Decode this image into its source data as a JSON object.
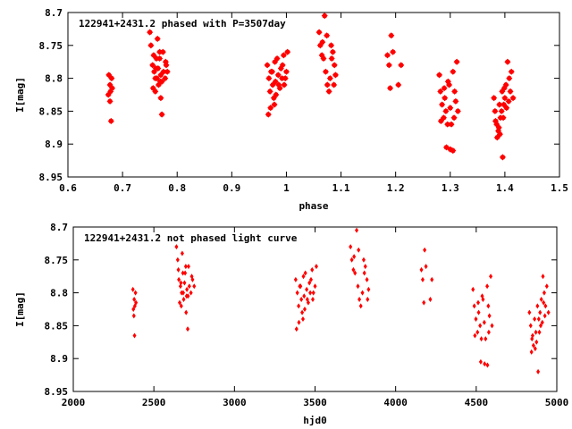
{
  "chart_data": [
    {
      "type": "scatter",
      "title": "122941+2431.2 phased with P=3507day",
      "xlabel": "phase",
      "ylabel": "I[mag]",
      "xlim": [
        0.6,
        1.5
      ],
      "ylim": [
        8.7,
        8.95
      ],
      "y_inverted": true,
      "x_ticks": [
        "0.6",
        "0.7",
        "0.8",
        "0.9",
        "1",
        "1.1",
        "1.2",
        "1.3",
        "1.4",
        "1.5"
      ],
      "y_ticks": [
        "8.7",
        "8.75",
        "8.8",
        "8.85",
        "8.9",
        "8.95"
      ],
      "grid": false,
      "color": "#ff0000",
      "series": [
        {
          "points": [
            [
              0.675,
              8.795
            ],
            [
              0.677,
              8.81
            ],
            [
              0.678,
              8.82
            ],
            [
              0.68,
              8.8
            ],
            [
              0.677,
              8.835
            ],
            [
              0.679,
              8.865
            ],
            [
              0.681,
              8.815
            ],
            [
              0.674,
              8.825
            ],
            [
              0.75,
              8.73
            ],
            [
              0.752,
              8.75
            ],
            [
              0.755,
              8.78
            ],
            [
              0.758,
              8.79
            ],
            [
              0.76,
              8.8
            ],
            [
              0.762,
              8.77
            ],
            [
              0.765,
              8.785
            ],
            [
              0.768,
              8.76
            ],
            [
              0.77,
              8.795
            ],
            [
              0.772,
              8.805
            ],
            [
              0.775,
              8.79
            ],
            [
              0.778,
              8.8
            ],
            [
              0.78,
              8.78
            ],
            [
              0.756,
              8.815
            ],
            [
              0.76,
              8.82
            ],
            [
              0.766,
              8.81
            ],
            [
              0.77,
              8.83
            ],
            [
              0.772,
              8.855
            ],
            [
              0.764,
              8.74
            ],
            [
              0.768,
              8.77
            ],
            [
              0.774,
              8.76
            ],
            [
              0.779,
              8.775
            ],
            [
              0.782,
              8.79
            ],
            [
              0.761,
              8.785
            ],
            [
              0.757,
              8.765
            ],
            [
              0.763,
              8.8
            ],
            [
              0.769,
              8.805
            ],
            [
              0.965,
              8.78
            ],
            [
              0.968,
              8.8
            ],
            [
              0.97,
              8.82
            ],
            [
              0.972,
              8.79
            ],
            [
              0.975,
              8.81
            ],
            [
              0.978,
              8.84
            ],
            [
              0.98,
              8.805
            ],
            [
              0.983,
              8.77
            ],
            [
              0.985,
              8.795
            ],
            [
              0.988,
              8.815
            ],
            [
              0.99,
              8.785
            ],
            [
              0.993,
              8.78
            ],
            [
              0.995,
              8.765
            ],
            [
              0.998,
              8.8
            ],
            [
              1.0,
              8.79
            ],
            [
              1.002,
              8.76
            ],
            [
              0.967,
              8.855
            ],
            [
              0.971,
              8.845
            ],
            [
              0.977,
              8.83
            ],
            [
              0.981,
              8.825
            ],
            [
              0.986,
              8.81
            ],
            [
              0.992,
              8.8
            ],
            [
              0.974,
              8.79
            ],
            [
              0.979,
              8.775
            ],
            [
              0.996,
              8.81
            ],
            [
              1.06,
              8.73
            ],
            [
              1.062,
              8.75
            ],
            [
              1.065,
              8.765
            ],
            [
              1.068,
              8.77
            ],
            [
              1.07,
              8.705
            ],
            [
              1.072,
              8.79
            ],
            [
              1.075,
              8.81
            ],
            [
              1.078,
              8.82
            ],
            [
              1.08,
              8.8
            ],
            [
              1.082,
              8.75
            ],
            [
              1.085,
              8.76
            ],
            [
              1.088,
              8.78
            ],
            [
              1.09,
              8.795
            ],
            [
              1.066,
              8.745
            ],
            [
              1.074,
              8.735
            ],
            [
              1.083,
              8.77
            ],
            [
              1.087,
              8.81
            ],
            [
              1.185,
              8.765
            ],
            [
              1.188,
              8.78
            ],
            [
              1.19,
              8.815
            ],
            [
              1.192,
              8.735
            ],
            [
              1.195,
              8.76
            ],
            [
              1.205,
              8.81
            ],
            [
              1.21,
              8.78
            ],
            [
              1.28,
              8.795
            ],
            [
              1.282,
              8.82
            ],
            [
              1.285,
              8.84
            ],
            [
              1.288,
              8.86
            ],
            [
              1.29,
              8.83
            ],
            [
              1.292,
              8.85
            ],
            [
              1.295,
              8.87
            ],
            [
              1.298,
              8.81
            ],
            [
              1.3,
              8.845
            ],
            [
              1.302,
              8.87
            ],
            [
              1.305,
              8.79
            ],
            [
              1.308,
              8.82
            ],
            [
              1.31,
              8.835
            ],
            [
              1.312,
              8.775
            ],
            [
              1.314,
              8.85
            ],
            [
              1.283,
              8.865
            ],
            [
              1.293,
              8.905
            ],
            [
              1.3,
              8.908
            ],
            [
              1.305,
              8.91
            ],
            [
              1.296,
              8.805
            ],
            [
              1.289,
              8.815
            ],
            [
              1.307,
              8.86
            ],
            [
              1.38,
              8.83
            ],
            [
              1.382,
              8.85
            ],
            [
              1.385,
              8.87
            ],
            [
              1.388,
              8.88
            ],
            [
              1.39,
              8.84
            ],
            [
              1.392,
              8.86
            ],
            [
              1.395,
              8.82
            ],
            [
              1.398,
              8.84
            ],
            [
              1.4,
              8.83
            ],
            [
              1.402,
              8.81
            ],
            [
              1.405,
              8.775
            ],
            [
              1.408,
              8.8
            ],
            [
              1.41,
              8.82
            ],
            [
              1.412,
              8.79
            ],
            [
              1.415,
              8.83
            ],
            [
              1.386,
              8.89
            ],
            [
              1.391,
              8.885
            ],
            [
              1.396,
              8.92
            ],
            [
              1.397,
              8.86
            ],
            [
              1.403,
              8.845
            ],
            [
              1.407,
              8.835
            ],
            [
              1.383,
              8.865
            ],
            [
              1.389,
              8.875
            ],
            [
              1.394,
              8.85
            ],
            [
              1.399,
              8.815
            ]
          ]
        }
      ]
    },
    {
      "type": "scatter",
      "title": "122941+2431.2 not phased light curve",
      "xlabel": "hjd0",
      "ylabel": "I[mag]",
      "xlim": [
        2000,
        5000
      ],
      "ylim": [
        8.7,
        8.95
      ],
      "y_inverted": true,
      "x_ticks": [
        "2000",
        "2500",
        "3000",
        "3500",
        "4000",
        "4500",
        "5000"
      ],
      "y_ticks": [
        "8.7",
        "8.75",
        "8.8",
        "8.85",
        "8.9",
        "8.95"
      ],
      "grid": false,
      "color": "#ff0000",
      "series": [
        {
          "points": [
            [
              2370,
              8.795
            ],
            [
              2378,
              8.81
            ],
            [
              2382,
              8.82
            ],
            [
              2386,
              8.8
            ],
            [
              2376,
              8.835
            ],
            [
              2380,
              8.865
            ],
            [
              2389,
              8.815
            ],
            [
              2373,
              8.825
            ],
            [
              2640,
              8.73
            ],
            [
              2648,
              8.75
            ],
            [
              2655,
              8.78
            ],
            [
              2665,
              8.79
            ],
            [
              2672,
              8.8
            ],
            [
              2680,
              8.77
            ],
            [
              2690,
              8.785
            ],
            [
              2698,
              8.76
            ],
            [
              2705,
              8.795
            ],
            [
              2712,
              8.805
            ],
            [
              2720,
              8.79
            ],
            [
              2730,
              8.8
            ],
            [
              2740,
              8.78
            ],
            [
              2660,
              8.815
            ],
            [
              2670,
              8.82
            ],
            [
              2685,
              8.81
            ],
            [
              2700,
              8.83
            ],
            [
              2710,
              8.855
            ],
            [
              2676,
              8.74
            ],
            [
              2694,
              8.77
            ],
            [
              2715,
              8.76
            ],
            [
              2735,
              8.775
            ],
            [
              2750,
              8.79
            ],
            [
              2668,
              8.785
            ],
            [
              2652,
              8.765
            ],
            [
              2682,
              8.8
            ],
            [
              2703,
              8.805
            ],
            [
              3380,
              8.78
            ],
            [
              3390,
              8.8
            ],
            [
              3398,
              8.82
            ],
            [
              3405,
              8.79
            ],
            [
              3415,
              8.81
            ],
            [
              3425,
              8.84
            ],
            [
              3432,
              8.805
            ],
            [
              3440,
              8.77
            ],
            [
              3448,
              8.795
            ],
            [
              3458,
              8.815
            ],
            [
              3465,
              8.785
            ],
            [
              3475,
              8.78
            ],
            [
              3482,
              8.765
            ],
            [
              3490,
              8.8
            ],
            [
              3500,
              8.79
            ],
            [
              3508,
              8.76
            ],
            [
              3385,
              8.855
            ],
            [
              3400,
              8.845
            ],
            [
              3420,
              8.83
            ],
            [
              3436,
              8.825
            ],
            [
              3452,
              8.81
            ],
            [
              3470,
              8.8
            ],
            [
              3410,
              8.79
            ],
            [
              3428,
              8.775
            ],
            [
              3486,
              8.81
            ],
            [
              3720,
              8.73
            ],
            [
              3728,
              8.75
            ],
            [
              3738,
              8.765
            ],
            [
              3748,
              8.77
            ],
            [
              3758,
              8.705
            ],
            [
              3766,
              8.79
            ],
            [
              3775,
              8.81
            ],
            [
              3784,
              8.82
            ],
            [
              3794,
              8.8
            ],
            [
              3802,
              8.75
            ],
            [
              3812,
              8.76
            ],
            [
              3822,
              8.78
            ],
            [
              3832,
              8.795
            ],
            [
              3742,
              8.745
            ],
            [
              3770,
              8.735
            ],
            [
              3806,
              8.77
            ],
            [
              3826,
              8.81
            ],
            [
              4160,
              8.765
            ],
            [
              4168,
              8.78
            ],
            [
              4175,
              8.815
            ],
            [
              4180,
              8.735
            ],
            [
              4188,
              8.76
            ],
            [
              4215,
              8.81
            ],
            [
              4225,
              8.78
            ],
            [
              4480,
              8.795
            ],
            [
              4488,
              8.82
            ],
            [
              4498,
              8.84
            ],
            [
              4508,
              8.86
            ],
            [
              4515,
              8.83
            ],
            [
              4524,
              8.85
            ],
            [
              4532,
              8.87
            ],
            [
              4542,
              8.81
            ],
            [
              4550,
              8.845
            ],
            [
              4558,
              8.87
            ],
            [
              4568,
              8.79
            ],
            [
              4575,
              8.82
            ],
            [
              4582,
              8.835
            ],
            [
              4590,
              8.775
            ],
            [
              4598,
              8.85
            ],
            [
              4492,
              8.865
            ],
            [
              4528,
              8.905
            ],
            [
              4552,
              8.908
            ],
            [
              4570,
              8.91
            ],
            [
              4537,
              8.805
            ],
            [
              4512,
              8.815
            ],
            [
              4578,
              8.86
            ],
            [
              4830,
              8.83
            ],
            [
              4838,
              8.85
            ],
            [
              4846,
              8.87
            ],
            [
              4855,
              8.88
            ],
            [
              4862,
              8.84
            ],
            [
              4870,
              8.86
            ],
            [
              4880,
              8.82
            ],
            [
              4888,
              8.84
            ],
            [
              4896,
              8.83
            ],
            [
              4904,
              8.81
            ],
            [
              4914,
              8.775
            ],
            [
              4922,
              8.8
            ],
            [
              4930,
              8.82
            ],
            [
              4938,
              8.79
            ],
            [
              4948,
              8.83
            ],
            [
              4843,
              8.89
            ],
            [
              4866,
              8.885
            ],
            [
              4884,
              8.92
            ],
            [
              4892,
              8.86
            ],
            [
              4910,
              8.845
            ],
            [
              4926,
              8.835
            ],
            [
              4850,
              8.865
            ],
            [
              4874,
              8.875
            ],
            [
              4900,
              8.85
            ],
            [
              4918,
              8.815
            ]
          ]
        }
      ]
    }
  ]
}
